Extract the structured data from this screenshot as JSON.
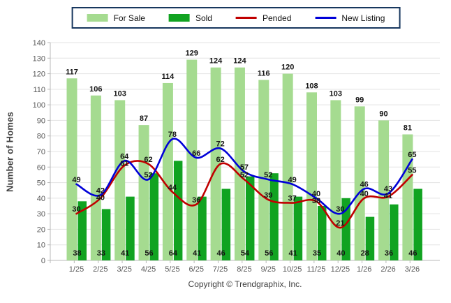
{
  "footer": {
    "copyright": "Copyright © Trendgraphix, Inc."
  },
  "colors": {
    "for_sale": "#A5DB90",
    "sold": "#11A321",
    "pended": "#C00000",
    "new_listing": "#0000D8",
    "grid": "#E3E3E3",
    "axis": "#B8B8B8",
    "legend_border": "#17375E"
  },
  "chart_data": {
    "type": "bar",
    "subtype": "grouped-bars-with-lines",
    "title": "",
    "xlabel": "",
    "ylabel": "Number of Homes",
    "ylim": [
      0,
      140
    ],
    "yticks": [
      0,
      10,
      20,
      30,
      40,
      50,
      60,
      70,
      80,
      90,
      100,
      110,
      120,
      130,
      140
    ],
    "grid": "horizontal",
    "legend_position": "top-center",
    "categories": [
      "1/25",
      "2/25",
      "3/25",
      "4/25",
      "5/25",
      "6/25",
      "7/25",
      "8/25",
      "9/25",
      "10/25",
      "11/25",
      "12/25",
      "1/26",
      "2/26",
      "3/26"
    ],
    "series": [
      {
        "name": "For Sale",
        "type": "bar",
        "color": "#A5DB90",
        "values": [
          117,
          106,
          103,
          87,
          114,
          129,
          124,
          124,
          116,
          120,
          108,
          103,
          99,
          90,
          81
        ]
      },
      {
        "name": "Sold",
        "type": "bar",
        "color": "#11A321",
        "values": [
          38,
          33,
          41,
          56,
          64,
          41,
          46,
          54,
          56,
          41,
          35,
          40,
          28,
          36,
          46
        ]
      },
      {
        "name": "Pended",
        "type": "line",
        "color": "#C00000",
        "values": [
          30,
          40,
          61,
          62,
          44,
          36,
          62,
          52,
          39,
          37,
          38,
          21,
          40,
          41,
          55
        ]
      },
      {
        "name": "New Listing",
        "type": "line",
        "color": "#0000D8",
        "values": [
          49,
          42,
          64,
          52,
          78,
          66,
          72,
          57,
          52,
          49,
          40,
          30,
          46,
          43,
          65
        ]
      }
    ]
  }
}
